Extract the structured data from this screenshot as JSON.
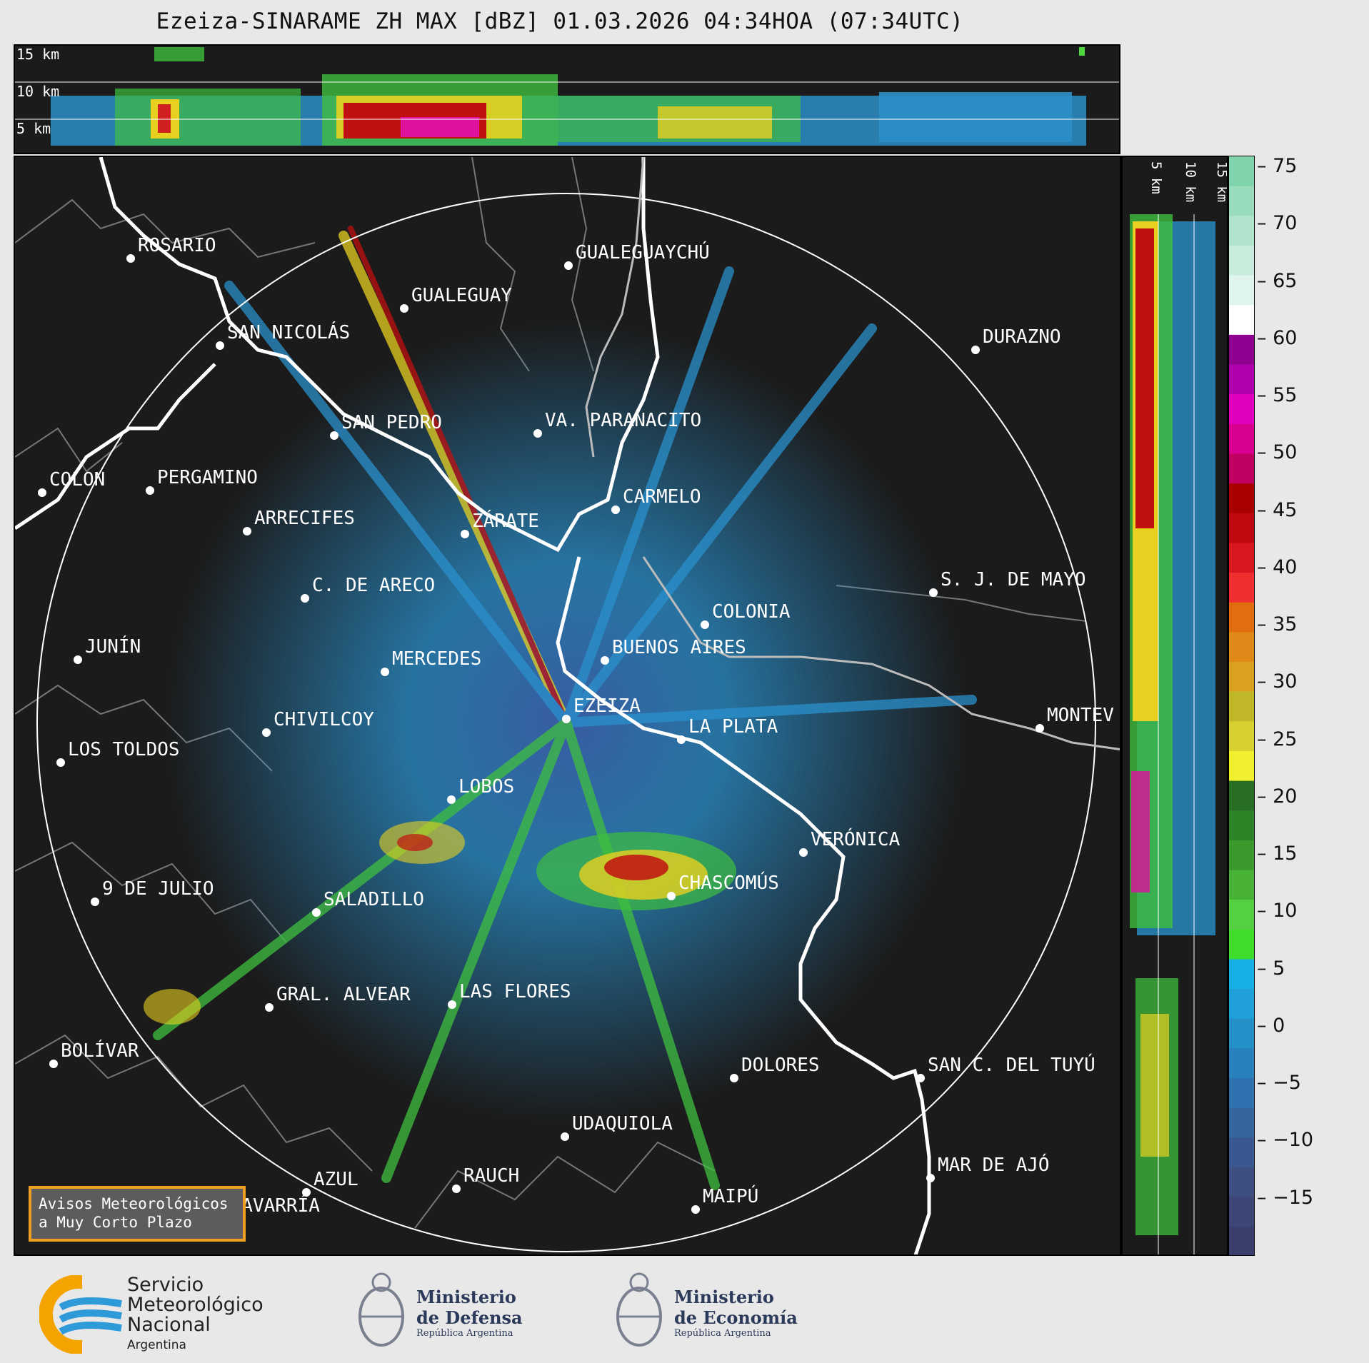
{
  "title": "Ezeiza-SINARAME ZH MAX [dBZ] 01.03.2026 04:34HOA (07:34UTC)",
  "top_panel": {
    "height_labels": [
      "15 km",
      "10 km",
      "5 km"
    ]
  },
  "side_panel": {
    "height_labels": [
      "5 km",
      "10 km",
      "15 km"
    ]
  },
  "colorbar": {
    "ticks": [
      "75",
      "70",
      "65",
      "60",
      "55",
      "50",
      "45",
      "40",
      "35",
      "30",
      "25",
      "20",
      "15",
      "10",
      "5",
      "0",
      "−5",
      "−10",
      "−15"
    ],
    "range_dbz": [
      -20,
      76
    ]
  },
  "cities": [
    {
      "name": "ROSARIO"
    },
    {
      "name": "GUALEGUAYCHÚ"
    },
    {
      "name": "GUALEGUAY"
    },
    {
      "name": "SAN NICOLÁS"
    },
    {
      "name": "DURAZNO"
    },
    {
      "name": "SAN PEDRO"
    },
    {
      "name": "VA. PARANACITO"
    },
    {
      "name": "COLON"
    },
    {
      "name": "PERGAMINO"
    },
    {
      "name": "CARMELO"
    },
    {
      "name": "ARRECIFES"
    },
    {
      "name": "ZÁRATE"
    },
    {
      "name": "S. J. DE MAYO"
    },
    {
      "name": "C. DE ARECO"
    },
    {
      "name": "COLONIA"
    },
    {
      "name": "JUNÍN"
    },
    {
      "name": "BUENOS AIRES"
    },
    {
      "name": "MERCEDES"
    },
    {
      "name": "MONTEV"
    },
    {
      "name": "EZEIZA"
    },
    {
      "name": "CHIVILCOY"
    },
    {
      "name": "LA PLATA"
    },
    {
      "name": "LOS TOLDOS"
    },
    {
      "name": "LOBOS"
    },
    {
      "name": "VERÓNICA"
    },
    {
      "name": "9 DE JULIO"
    },
    {
      "name": "CHASCOMÚS"
    },
    {
      "name": "SALADILLO"
    },
    {
      "name": "GRAL. ALVEAR"
    },
    {
      "name": "LAS FLORES"
    },
    {
      "name": "BOLÍVAR"
    },
    {
      "name": "DOLORES"
    },
    {
      "name": "SAN C. DEL TUYÚ"
    },
    {
      "name": "UDAQUIOLA"
    },
    {
      "name": "MAR DE AJÓ"
    },
    {
      "name": "AZUL"
    },
    {
      "name": "RAUCH"
    },
    {
      "name": "OLAVARRÍA"
    },
    {
      "name": "MAIPÚ"
    }
  ],
  "avisos": {
    "line1": "Avisos Meteorológicos",
    "line2": "a Muy Corto Plazo"
  },
  "footer": {
    "smn": {
      "line1": "Servicio",
      "line2": "Meteorológico",
      "line3": "Nacional",
      "line4": "Argentina"
    },
    "defensa": {
      "line1": "Ministerio",
      "line2": "de Defensa",
      "line3": "República Argentina"
    },
    "economia": {
      "line1": "Ministerio",
      "line2": "de Economía",
      "line3": "República Argentina"
    }
  },
  "colors": {
    "panel_bg": "#1b1b1b",
    "coast_line": "#ffffff",
    "province_border": "#777777",
    "avisos_border": "#f0a020",
    "smn_orange": "#f5a300",
    "smn_blue": "#2f9ad8"
  }
}
